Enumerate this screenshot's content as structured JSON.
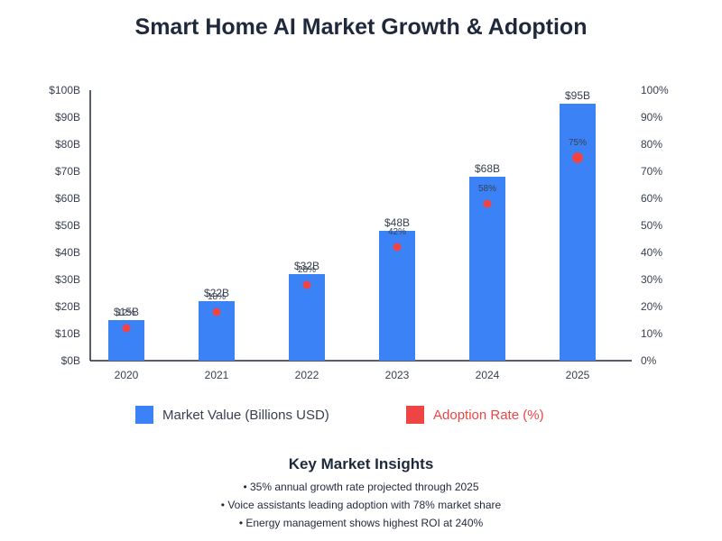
{
  "title": "Smart Home AI Market Growth & Adoption",
  "colors": {
    "bar": "#3b82f6",
    "dot": "#ef4444",
    "text": "#1e293b",
    "axis": "#1e293b",
    "muted": "#374151"
  },
  "chart_data": {
    "type": "bar",
    "title": "Smart Home AI Market Growth & Adoption",
    "categories": [
      "2020",
      "2021",
      "2022",
      "2023",
      "2024",
      "2025"
    ],
    "series": [
      {
        "name": "Market Value (Billions USD)",
        "axis": "left",
        "values": [
          15,
          22,
          32,
          48,
          68,
          95
        ],
        "labels": [
          "$15B",
          "$22B",
          "$32B",
          "$48B",
          "$68B",
          "$95B"
        ]
      },
      {
        "name": "Adoption Rate (%)",
        "axis": "right",
        "values": [
          12,
          18,
          28,
          42,
          58,
          75
        ],
        "labels": [
          "12%",
          "18%",
          "28%",
          "42%",
          "58%",
          "75%"
        ]
      }
    ],
    "y_left": {
      "min": 0,
      "max": 100,
      "ticks": [
        "$0B",
        "$10B",
        "$20B",
        "$30B",
        "$40B",
        "$50B",
        "$60B",
        "$70B",
        "$80B",
        "$90B",
        "$100B"
      ]
    },
    "y_right": {
      "min": 0,
      "max": 100,
      "ticks": [
        "0%",
        "10%",
        "20%",
        "30%",
        "40%",
        "50%",
        "60%",
        "70%",
        "80%",
        "90%",
        "100%"
      ]
    },
    "legend_position": "bottom",
    "grid": false
  },
  "legend": {
    "market_label": "Market Value (Billions USD)",
    "adoption_label": "Adoption Rate (%)"
  },
  "insights": {
    "title": "Key Market Insights",
    "items": [
      "• 35% annual growth rate projected through 2025",
      "• Voice assistants leading adoption with 78% market share",
      "• Energy management shows highest ROI at 240%"
    ]
  }
}
